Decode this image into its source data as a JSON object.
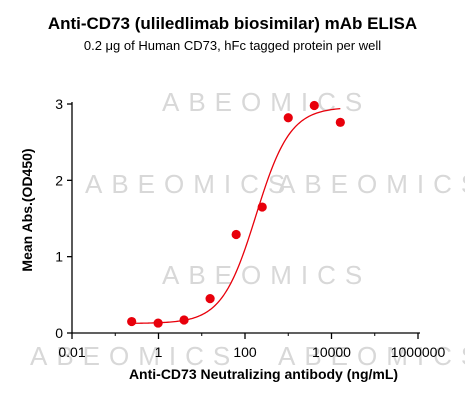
{
  "chart_data": {
    "type": "scatter",
    "title": "Anti-CD73 (uliledlimab biosimilar) mAb ELISA",
    "subtitle": "0.2 μg of Human CD73, hFc tagged protein per well",
    "xlabel": "Anti-CD73 Neutralizing antibody (ng/mL)",
    "ylabel": "Mean Abs.(OD450)",
    "x_scale": "log",
    "xlim": [
      0.01,
      1000000
    ],
    "ylim": [
      0,
      3
    ],
    "x_ticks": [
      "0.01",
      "1",
      "100",
      "10000",
      "1000000"
    ],
    "y_ticks": [
      "0",
      "1",
      "2",
      "3"
    ],
    "grid": false,
    "watermark": "ABEOMICS",
    "colors": {
      "points": "#e8000b",
      "curve": "#e8000b"
    },
    "series": [
      {
        "x": [
          0.24,
          0.98,
          3.9,
          15.6,
          62.5,
          250,
          1000,
          4000,
          16000
        ],
        "y": [
          0.15,
          0.13,
          0.17,
          0.45,
          1.29,
          1.65,
          2.82,
          2.98,
          2.76
        ]
      }
    ],
    "fit": {
      "type": "4PL",
      "bottom": 0.125,
      "top": 2.96,
      "ec50": 180,
      "hill": 1.1,
      "x_range": [
        0.24,
        16000
      ]
    }
  }
}
